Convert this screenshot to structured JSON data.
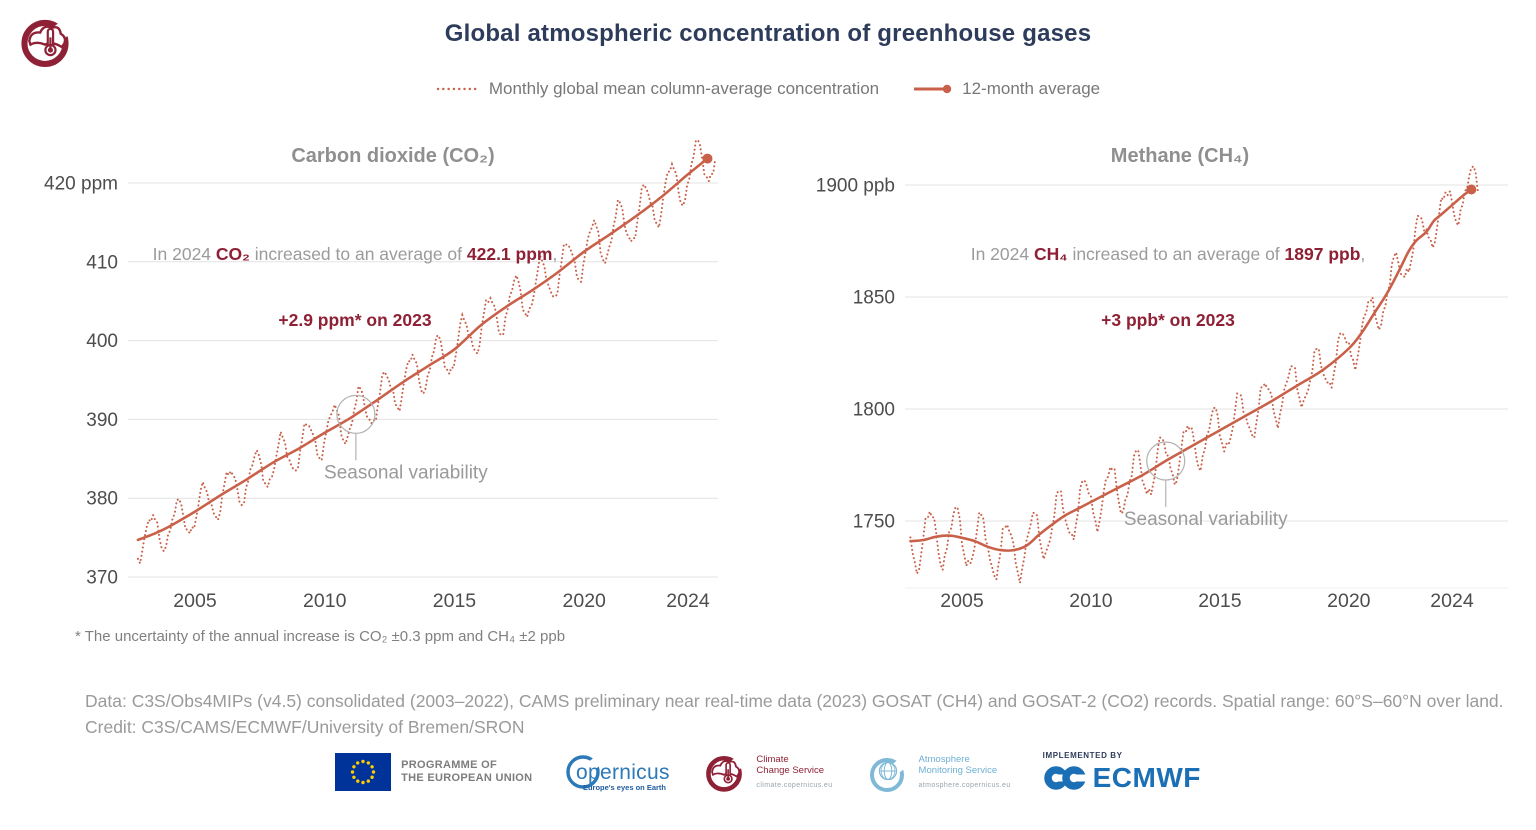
{
  "header": {
    "title": "Global atmospheric concentration of greenhouse gases"
  },
  "legend": {
    "monthly": "Monthly global mean column-average concentration",
    "average": "12-month average"
  },
  "colors": {
    "line": "#c9614a",
    "accent_red": "#8e2135",
    "title_navy": "#2e3c5c",
    "grid": "#e3e3e3",
    "grid_faint": "#efefef",
    "axis_text": "#4d4d4d",
    "chart_title_gray": "#8f8f8f",
    "callout_gray": "#9a9a9a"
  },
  "chart_data": [
    {
      "type": "line",
      "title": "Carbon dioxide (CO₂)",
      "unit": "ppm",
      "xlabel": "",
      "ylabel": "ppm",
      "xlim": [
        2002.8,
        2025.1
      ],
      "ylim": [
        370,
        423.5
      ],
      "grid": true,
      "y_ticks": [
        {
          "v": 420,
          "label": "420 ppm"
        },
        {
          "v": 410,
          "label": "410"
        },
        {
          "v": 400,
          "label": "400"
        },
        {
          "v": 390,
          "label": "390"
        },
        {
          "v": 380,
          "label": "380"
        },
        {
          "v": 370,
          "label": "370"
        }
      ],
      "x_ticks": [
        {
          "v": 2005,
          "label": "2005"
        },
        {
          "v": 2010,
          "label": "2010"
        },
        {
          "v": 2015,
          "label": "2015"
        },
        {
          "v": 2020,
          "label": "2020"
        },
        {
          "v": 2024,
          "label": "2024"
        }
      ],
      "average_series": {
        "name": "12-month average",
        "points": [
          [
            2002.8,
            374.7
          ],
          [
            2003.5,
            375.6
          ],
          [
            2004,
            376.4
          ],
          [
            2005,
            378.3
          ],
          [
            2006,
            380.4
          ],
          [
            2007,
            382.4
          ],
          [
            2008,
            384.5
          ],
          [
            2009,
            386.3
          ],
          [
            2010,
            388.3
          ],
          [
            2011,
            390.2
          ],
          [
            2012,
            392.4
          ],
          [
            2013,
            394.7
          ],
          [
            2014,
            396.8
          ],
          [
            2015,
            398.9
          ],
          [
            2016,
            401.9
          ],
          [
            2017,
            404.3
          ],
          [
            2018,
            406.4
          ],
          [
            2019,
            408.7
          ],
          [
            2020,
            411.3
          ],
          [
            2021,
            413.5
          ],
          [
            2022,
            415.8
          ],
          [
            2023,
            418.3
          ],
          [
            2024,
            421.1
          ],
          [
            2024.75,
            423.1
          ]
        ]
      },
      "monthly_series": {
        "name": "Monthly global mean column-average concentration",
        "derived_from_average": true,
        "seasonal_amplitude": [
          2.5,
          3.2
        ],
        "phase": 0.08,
        "noise": 0.5,
        "extend_years": 0.3
      },
      "annotation": {
        "intro": "In 2024 ",
        "gas": "CO₂",
        "mid": " increased to an average of ",
        "value": "422.1 ppm",
        "tail": ",",
        "line2": "+2.9 ppm* on 2023"
      },
      "callout": {
        "label": "Seasonal variability",
        "year": 2011.2
      }
    },
    {
      "type": "line",
      "title": "Methane (CH₄)",
      "unit": "ppb",
      "xlabel": "",
      "ylabel": "ppb",
      "xlim": [
        2003.0,
        2025.1
      ],
      "ylim": [
        1725,
        1907
      ],
      "grid": true,
      "y_ticks": [
        {
          "v": 1900,
          "label": "1900 ppb"
        },
        {
          "v": 1850,
          "label": "1850"
        },
        {
          "v": 1800,
          "label": "1800"
        },
        {
          "v": 1750,
          "label": "1750"
        }
      ],
      "x_ticks": [
        {
          "v": 2005,
          "label": "2005"
        },
        {
          "v": 2010,
          "label": "2010"
        },
        {
          "v": 2015,
          "label": "2015"
        },
        {
          "v": 2020,
          "label": "2020"
        },
        {
          "v": 2024,
          "label": "2024"
        }
      ],
      "average_series": {
        "name": "12-month average",
        "points": [
          [
            2003,
            1741
          ],
          [
            2003.5,
            1741.5
          ],
          [
            2004,
            1743
          ],
          [
            2004.5,
            1743.5
          ],
          [
            2005,
            1742.5
          ],
          [
            2005.5,
            1741
          ],
          [
            2006,
            1738.5
          ],
          [
            2006.5,
            1737
          ],
          [
            2007,
            1737
          ],
          [
            2007.5,
            1739
          ],
          [
            2008,
            1744
          ],
          [
            2008.5,
            1748.5
          ],
          [
            2009,
            1752.5
          ],
          [
            2009.5,
            1755.5
          ],
          [
            2010,
            1758.5
          ],
          [
            2011,
            1764.5
          ],
          [
            2012,
            1770.5
          ],
          [
            2013,
            1777.5
          ],
          [
            2014,
            1784
          ],
          [
            2015,
            1790.5
          ],
          [
            2016,
            1797
          ],
          [
            2017,
            1803.5
          ],
          [
            2018,
            1810.5
          ],
          [
            2019,
            1817.5
          ],
          [
            2020,
            1827
          ],
          [
            2020.5,
            1834
          ],
          [
            2021,
            1843
          ],
          [
            2021.5,
            1852
          ],
          [
            2022,
            1863
          ],
          [
            2022.3,
            1870
          ],
          [
            2022.6,
            1875
          ],
          [
            2023,
            1879
          ],
          [
            2023.3,
            1884
          ],
          [
            2023.6,
            1887
          ],
          [
            2024,
            1891
          ],
          [
            2024.4,
            1895
          ],
          [
            2024.75,
            1898
          ]
        ]
      },
      "monthly_series": {
        "name": "Monthly global mean column-average concentration",
        "derived_from_average": true,
        "seasonal_amplitude": [
          13,
          9
        ],
        "phase": 0.5,
        "noise": 2.2,
        "extend_years": 0.3
      },
      "annotation": {
        "intro": "In 2024 ",
        "gas": "CH₄",
        "mid": " increased to an average of ",
        "value": "1897 ppb",
        "tail": ",",
        "line2": "+3 ppb* on 2023"
      },
      "callout": {
        "label": "Seasonal variability",
        "year": 2012.9
      }
    }
  ],
  "footnote": "* The uncertainty of the annual increase is CO₂ ±0.3 ppm and CH₄ ±2 ppb",
  "source": {
    "data": "Data: C3S/Obs4MIPs (v4.5) consolidated (2003–2022), CAMS preliminary near real-time data (2023) GOSAT (CH4) and GOSAT-2 (CO2) records. Spatial range: 60°S–60°N over land.",
    "credit": "Credit: C3S/CAMS/ECMWF/University of Bremen/SRON"
  },
  "logos": {
    "eu": {
      "line1": "PROGRAMME OF",
      "line2": "THE EUROPEAN UNION"
    },
    "copernicus": {
      "name": "opernicus",
      "tagline": "Europe's eyes on Earth"
    },
    "c3s": {
      "line1": "Climate",
      "line2": "Change Service",
      "url": "climate.copernicus.eu"
    },
    "cams": {
      "line1": "Atmosphere",
      "line2": "Monitoring Service",
      "url": "atmosphere.copernicus.eu"
    },
    "ecmwf": {
      "implemented": "IMPLEMENTED BY",
      "name": "ECMWF"
    }
  }
}
